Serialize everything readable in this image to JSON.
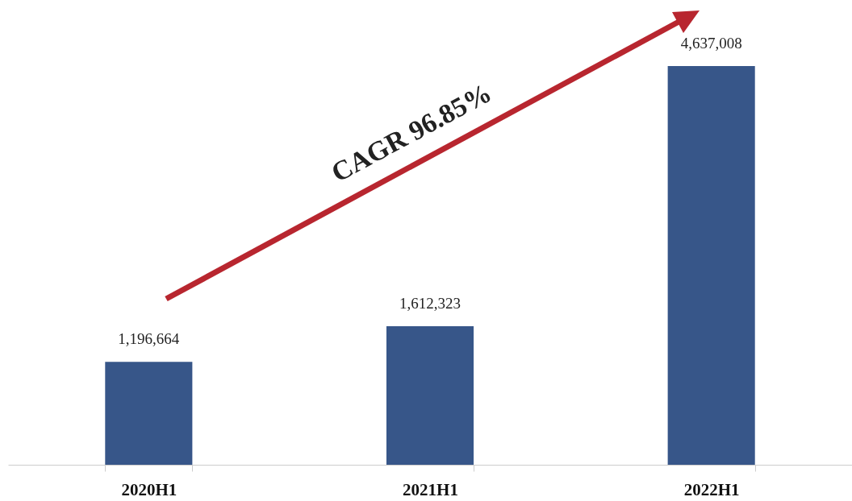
{
  "chart_data": {
    "type": "bar",
    "categories": [
      "2020H1",
      "2021H1",
      "2022H1"
    ],
    "values": [
      1196664,
      1612323,
      4637008
    ],
    "color": "#375689",
    "value_labels": [
      "1,196,664",
      "1,612,323",
      "4,637,008"
    ],
    "annotations": [
      "CAGR 96.85%"
    ]
  }
}
